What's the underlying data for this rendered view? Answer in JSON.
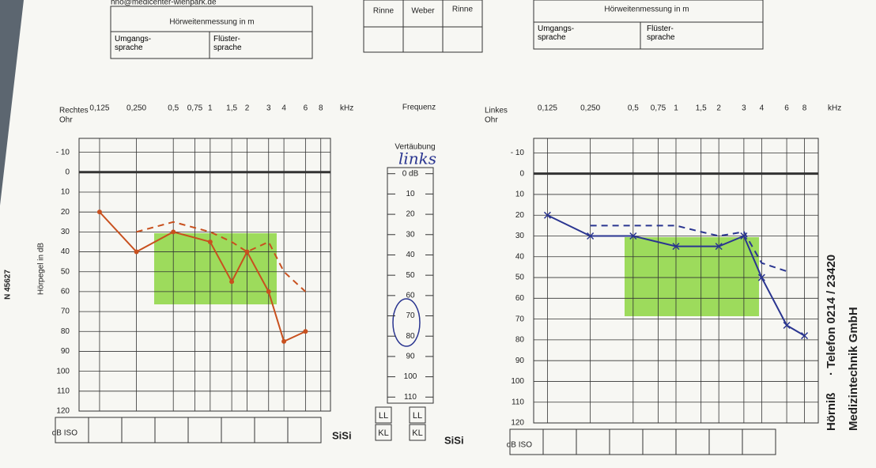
{
  "header": {
    "email": "hno@medicenter-wienpark.de",
    "left_table": {
      "title": "Hörweitenmessung in m",
      "col1": "Umgangs-sprache",
      "col2": "Flüster-sprache"
    },
    "middle_table": [
      "Rinne",
      "Weber",
      "Rinne"
    ],
    "right_table": {
      "title": "Hörweitenmessung in m",
      "col1": "Umgangs-sprache",
      "col2": "Flüster-sprache"
    }
  },
  "side": {
    "company": "Hörniß",
    "company2": "Medizintechnik GmbH",
    "phone": "· Telefon 0214 / 23420",
    "code": "N 45627"
  },
  "frequency_label": "Frequenz",
  "y_axis_label": "Hörpegel in dB",
  "masking": {
    "title": "Vertäubung",
    "note": "links",
    "ylim": [
      -3,
      113
    ],
    "ticks": [
      {
        "value": 0,
        "label": "0 dB"
      },
      10,
      20,
      30,
      40,
      50,
      60,
      70,
      80,
      90,
      100,
      110
    ],
    "boxes": [
      [
        "LL",
        "KL"
      ],
      [
        "LL",
        "KL"
      ]
    ]
  },
  "sisi": [
    "SiSi",
    "SiSi"
  ],
  "chart_data": [
    {
      "type": "line",
      "title": [
        "Rechtes",
        "Ohr"
      ],
      "x_unit": "kHz",
      "y_unit": "dB ISO",
      "log_x": true,
      "y_inverted": true,
      "grid": true,
      "xlim": [
        0.085,
        9.6
      ],
      "xticks": [
        {
          "value": 0.125,
          "label": "0,125"
        },
        {
          "value": 0.25,
          "label": "0,250"
        },
        {
          "value": 0.5,
          "label": "0,5"
        },
        {
          "value": 0.75,
          "label": "0,75"
        },
        1,
        {
          "value": 1.5,
          "label": "1,5"
        },
        2,
        3,
        4,
        6,
        8
      ],
      "ylim": [
        -17,
        120
      ],
      "yticks": [
        {
          "value": -10,
          "label": "- 10"
        },
        0,
        10,
        20,
        30,
        40,
        50,
        60,
        70,
        80,
        90,
        100,
        110,
        120
      ],
      "series": [
        {
          "color": "#c8501e",
          "dashed": false,
          "marker": "dot",
          "x": [
            0.125,
            0.25,
            0.5,
            1,
            1.5,
            2,
            3,
            4,
            6
          ],
          "values": [
            20,
            40,
            30,
            35,
            55,
            40,
            60,
            85,
            80
          ]
        },
        {
          "color": "#c8501e",
          "dashed": true,
          "marker": "none",
          "x": [
            0.25,
            0.5,
            1,
            1.5,
            2,
            3,
            4,
            6
          ],
          "values": [
            30,
            25,
            30,
            35,
            40,
            35,
            50,
            60
          ]
        }
      ]
    },
    {
      "type": "line",
      "title": [
        "Linkes",
        "Ohr"
      ],
      "x_unit": "kHz",
      "y_unit": "dB ISO",
      "log_x": true,
      "y_inverted": true,
      "grid": true,
      "xlim": [
        0.1,
        10
      ],
      "xticks": [
        {
          "value": 0.125,
          "label": "0,125"
        },
        {
          "value": 0.25,
          "label": "0,250"
        },
        {
          "value": 0.5,
          "label": "0,5"
        },
        {
          "value": 0.75,
          "label": "0,75"
        },
        1,
        {
          "value": 1.5,
          "label": "1,5"
        },
        2,
        3,
        4,
        6,
        8
      ],
      "ylim": [
        -17,
        120
      ],
      "yticks": [
        {
          "value": -10,
          "label": "- 10"
        },
        0,
        10,
        20,
        30,
        40,
        50,
        60,
        70,
        80,
        90,
        100,
        110,
        120
      ],
      "series": [
        {
          "color": "#2a3590",
          "dashed": false,
          "marker": "x",
          "x": [
            0.125,
            0.25,
            0.5,
            1,
            2,
            3,
            4,
            6,
            8
          ],
          "values": [
            20,
            30,
            30,
            35,
            35,
            30,
            50,
            73,
            78
          ]
        },
        {
          "color": "#2a3590",
          "dashed": true,
          "marker": "none",
          "x": [
            0.25,
            0.5,
            1,
            1.5,
            2,
            3,
            4,
            6
          ],
          "values": [
            25,
            25,
            25,
            28,
            30,
            28,
            43,
            47
          ]
        }
      ]
    }
  ]
}
